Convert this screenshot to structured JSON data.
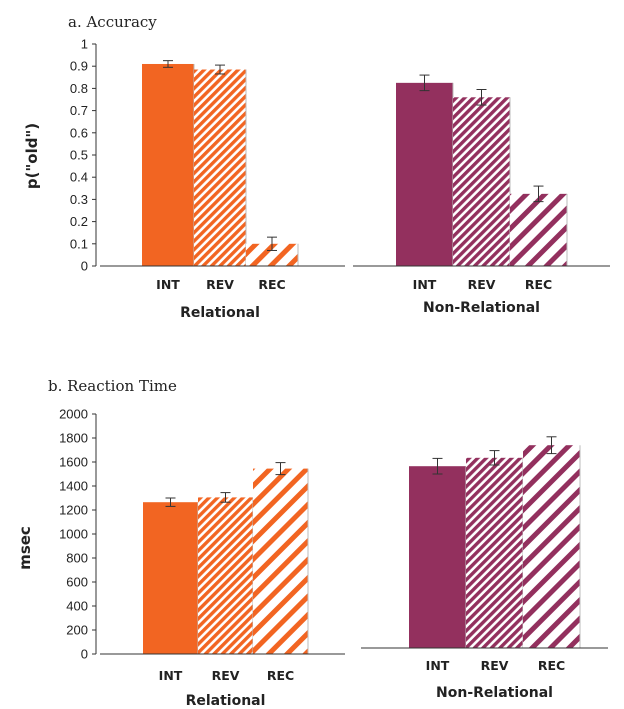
{
  "colors": {
    "relational": "#f26522",
    "non_relational": "#93305e"
  },
  "chart_data": [
    {
      "type": "bar",
      "title": "a. Accuracy",
      "ylabel": "p(\"old\")",
      "ylim": [
        0,
        1
      ],
      "yticks": [
        "0",
        "0.1",
        "0.2",
        "0.3",
        "0.4",
        "0.5",
        "0.6",
        "0.7",
        "0.8",
        "0.9",
        "1"
      ],
      "groups": [
        {
          "name": "Relational",
          "categories": [
            "INT",
            "REV",
            "REC"
          ],
          "values": [
            0.91,
            0.885,
            0.1
          ],
          "errors": [
            0.015,
            0.02,
            0.03
          ],
          "patterns": [
            "solid",
            "fine-hatch",
            "coarse-hatch"
          ]
        },
        {
          "name": "Non-Relational",
          "categories": [
            "INT",
            "REV",
            "REC"
          ],
          "values": [
            0.825,
            0.76,
            0.325
          ],
          "errors": [
            0.035,
            0.035,
            0.035
          ],
          "patterns": [
            "solid",
            "fine-hatch",
            "coarse-hatch"
          ]
        }
      ]
    },
    {
      "type": "bar",
      "title": "b. Reaction Time",
      "ylabel": "msec",
      "ylim": [
        0,
        2000
      ],
      "yticks": [
        "0",
        "200",
        "400",
        "600",
        "800",
        "1000",
        "1200",
        "1400",
        "1600",
        "1800",
        "2000"
      ],
      "groups": [
        {
          "name": "Relational",
          "categories": [
            "INT",
            "REV",
            "REC"
          ],
          "values": [
            1265,
            1305,
            1545
          ],
          "errors": [
            35,
            40,
            50
          ],
          "patterns": [
            "solid",
            "fine-hatch",
            "coarse-hatch"
          ]
        },
        {
          "name": "Non-Relational",
          "categories": [
            "INT",
            "REV",
            "REC"
          ],
          "values": [
            1515,
            1585,
            1690
          ],
          "errors": [
            65,
            60,
            70
          ],
          "patterns": [
            "solid",
            "fine-hatch",
            "coarse-hatch"
          ]
        }
      ]
    }
  ]
}
